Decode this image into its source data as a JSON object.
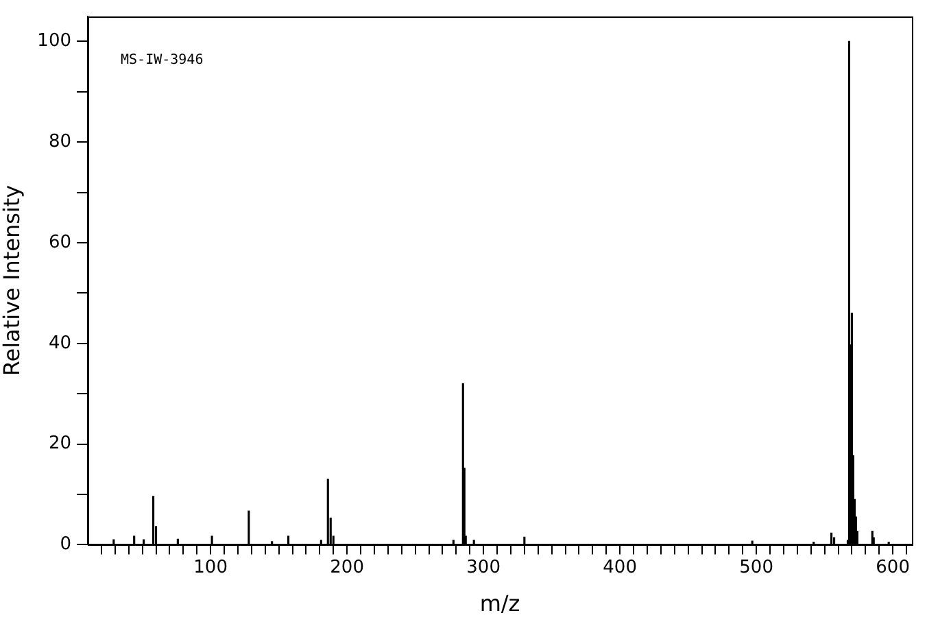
{
  "chart_data": {
    "type": "bar",
    "xlabel": "m/z",
    "ylabel": "Relative Intensity",
    "annotations": [
      "MS-IW-3946"
    ],
    "x": [
      29,
      44,
      51,
      58,
      60,
      76,
      101,
      128,
      145,
      157,
      181,
      186,
      188,
      190,
      278,
      285,
      286,
      287,
      293,
      330,
      497,
      542,
      555,
      557,
      567,
      568,
      569,
      570,
      571,
      572,
      573,
      574,
      585,
      586,
      597
    ],
    "series": [
      {
        "color": "#000000",
        "values": [
          1.0,
          1.7,
          1.0,
          9.6,
          3.6,
          1.1,
          1.7,
          6.7,
          0.6,
          1.7,
          0.9,
          13.0,
          5.3,
          1.7,
          0.9,
          32.0,
          15.2,
          1.7,
          0.9,
          1.5,
          0.7,
          0.5,
          2.3,
          1.4,
          0.9,
          100,
          39.7,
          46,
          17.7,
          9.0,
          5.5,
          2.7,
          2.7,
          1.4,
          0.5
        ]
      }
    ],
    "xlim": [
      10,
      614
    ],
    "ylim": [
      0,
      105
    ],
    "xticks": [
      {
        "value": 20,
        "label": null
      },
      {
        "value": 30,
        "label": null
      },
      {
        "value": 40,
        "label": null
      },
      {
        "value": 50,
        "label": null
      },
      {
        "value": 60,
        "label": null
      },
      {
        "value": 70,
        "label": null
      },
      {
        "value": 80,
        "label": null
      },
      {
        "value": 90,
        "label": null
      },
      100,
      {
        "value": 110,
        "label": null
      },
      {
        "value": 120,
        "label": null
      },
      {
        "value": 130,
        "label": null
      },
      {
        "value": 140,
        "label": null
      },
      {
        "value": 150,
        "label": null
      },
      {
        "value": 160,
        "label": null
      },
      {
        "value": 170,
        "label": null
      },
      {
        "value": 180,
        "label": null
      },
      {
        "value": 190,
        "label": null
      },
      200,
      {
        "value": 210,
        "label": null
      },
      {
        "value": 220,
        "label": null
      },
      {
        "value": 230,
        "label": null
      },
      {
        "value": 240,
        "label": null
      },
      {
        "value": 250,
        "label": null
      },
      {
        "value": 260,
        "label": null
      },
      {
        "value": 270,
        "label": null
      },
      {
        "value": 280,
        "label": null
      },
      {
        "value": 290,
        "label": null
      },
      300,
      {
        "value": 310,
        "label": null
      },
      {
        "value": 320,
        "label": null
      },
      {
        "value": 330,
        "label": null
      },
      {
        "value": 340,
        "label": null
      },
      {
        "value": 350,
        "label": null
      },
      {
        "value": 360,
        "label": null
      },
      {
        "value": 370,
        "label": null
      },
      {
        "value": 380,
        "label": null
      },
      {
        "value": 390,
        "label": null
      },
      400,
      {
        "value": 410,
        "label": null
      },
      {
        "value": 420,
        "label": null
      },
      {
        "value": 430,
        "label": null
      },
      {
        "value": 440,
        "label": null
      },
      {
        "value": 450,
        "label": null
      },
      {
        "value": 460,
        "label": null
      },
      {
        "value": 470,
        "label": null
      },
      {
        "value": 480,
        "label": null
      },
      {
        "value": 490,
        "label": null
      },
      500,
      {
        "value": 510,
        "label": null
      },
      {
        "value": 520,
        "label": null
      },
      {
        "value": 530,
        "label": null
      },
      {
        "value": 540,
        "label": null
      },
      {
        "value": 550,
        "label": null
      },
      {
        "value": 560,
        "label": null
      },
      {
        "value": 570,
        "label": null
      },
      {
        "value": 580,
        "label": null
      },
      {
        "value": 590,
        "label": null
      },
      600,
      {
        "value": 610,
        "label": null
      }
    ],
    "yticks": [
      0,
      {
        "value": 10,
        "label": null
      },
      20,
      {
        "value": 30,
        "label": null
      },
      40,
      {
        "value": 50,
        "label": null
      },
      60,
      {
        "value": 70,
        "label": null
      },
      80,
      {
        "value": 90,
        "label": null
      },
      100
    ],
    "grid": false,
    "legend": false
  }
}
